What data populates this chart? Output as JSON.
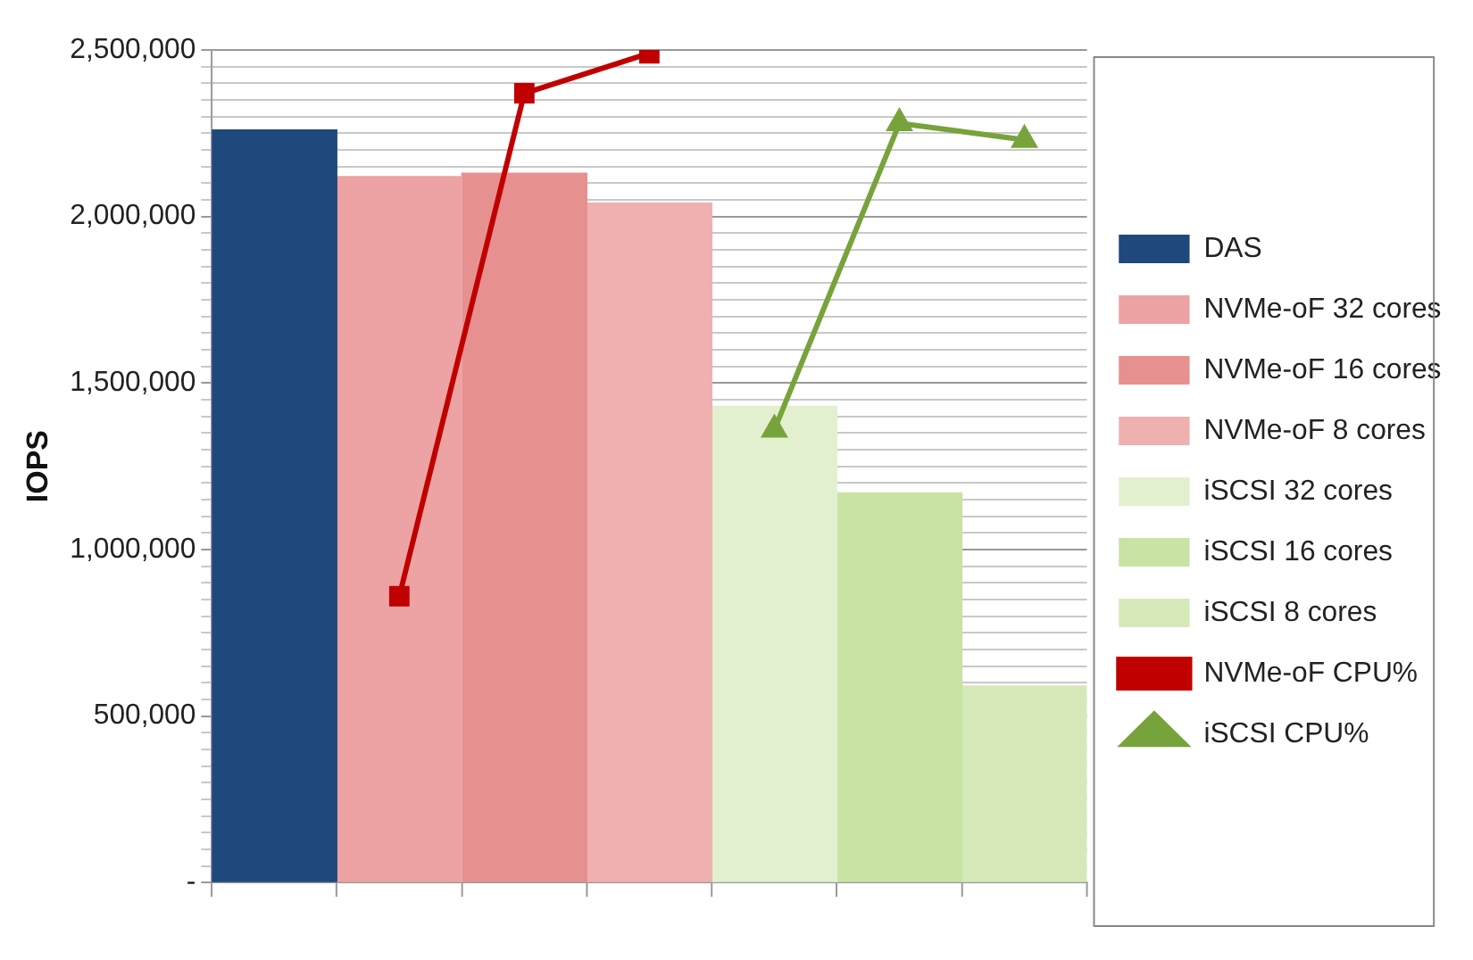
{
  "chart_data": {
    "type": "bar",
    "ylabel": "IOPS",
    "categories": [
      null,
      null,
      null,
      null,
      null,
      null,
      null
    ],
    "series": [
      {
        "name": "DAS",
        "color": "#1f497d",
        "values": [
          2260000,
          null,
          null,
          null,
          null,
          null,
          null
        ]
      },
      {
        "name": "NVMe-oF 32 cores",
        "color": "#eda3a3",
        "values": [
          null,
          2120000,
          null,
          null,
          null,
          null,
          null
        ]
      },
      {
        "name": "NVMe-oF 16 cores",
        "color": "#e79090",
        "values": [
          null,
          null,
          2130000,
          null,
          null,
          null,
          null
        ]
      },
      {
        "name": "NVMe-oF 8 cores",
        "color": "#efb0b0",
        "values": [
          null,
          null,
          null,
          2040000,
          null,
          null,
          null
        ]
      },
      {
        "name": "iSCSI 32 cores",
        "color": "#e2f0cf",
        "values": [
          null,
          null,
          null,
          null,
          1430000,
          null,
          null
        ]
      },
      {
        "name": "iSCSI 16 cores",
        "color": "#c8e3a4",
        "values": [
          null,
          null,
          null,
          null,
          null,
          1170000,
          null
        ]
      },
      {
        "name": "iSCSI 8 cores",
        "color": "#d6eab9",
        "values": [
          null,
          null,
          null,
          null,
          null,
          null,
          590000
        ]
      },
      {
        "name": "NVMe-oF CPU%",
        "type": "line",
        "marker": "square",
        "color": "#c00000",
        "values": [
          null,
          860000,
          2370000,
          2490000,
          null,
          null,
          null
        ]
      },
      {
        "name": "iSCSI CPU%",
        "type": "line",
        "marker": "triangle",
        "color": "#77a33b",
        "values": [
          null,
          null,
          null,
          null,
          1360000,
          2280000,
          2230000
        ]
      }
    ],
    "ylim": [
      0,
      2500000
    ],
    "yticks": [
      {
        "value": 0,
        "label": "-"
      },
      {
        "value": 50000,
        "label": null
      },
      {
        "value": 100000,
        "label": null
      },
      {
        "value": 150000,
        "label": null
      },
      {
        "value": 200000,
        "label": null
      },
      {
        "value": 250000,
        "label": null
      },
      {
        "value": 300000,
        "label": null
      },
      {
        "value": 350000,
        "label": null
      },
      {
        "value": 400000,
        "label": null
      },
      {
        "value": 450000,
        "label": null
      },
      {
        "value": 500000,
        "label": "500,000"
      },
      {
        "value": 550000,
        "label": null
      },
      {
        "value": 600000,
        "label": null
      },
      {
        "value": 650000,
        "label": null
      },
      {
        "value": 700000,
        "label": null
      },
      {
        "value": 750000,
        "label": null
      },
      {
        "value": 800000,
        "label": null
      },
      {
        "value": 850000,
        "label": null
      },
      {
        "value": 900000,
        "label": null
      },
      {
        "value": 950000,
        "label": null
      },
      {
        "value": 1000000,
        "label": "1,000,000"
      },
      {
        "value": 1050000,
        "label": null
      },
      {
        "value": 1100000,
        "label": null
      },
      {
        "value": 1150000,
        "label": null
      },
      {
        "value": 1200000,
        "label": null
      },
      {
        "value": 1250000,
        "label": null
      },
      {
        "value": 1300000,
        "label": null
      },
      {
        "value": 1350000,
        "label": null
      },
      {
        "value": 1400000,
        "label": null
      },
      {
        "value": 1450000,
        "label": null
      },
      {
        "value": 1500000,
        "label": "1,500,000"
      },
      {
        "value": 1550000,
        "label": null
      },
      {
        "value": 1600000,
        "label": null
      },
      {
        "value": 1650000,
        "label": null
      },
      {
        "value": 1700000,
        "label": null
      },
      {
        "value": 1750000,
        "label": null
      },
      {
        "value": 1800000,
        "label": null
      },
      {
        "value": 1850000,
        "label": null
      },
      {
        "value": 1900000,
        "label": null
      },
      {
        "value": 1950000,
        "label": null
      },
      {
        "value": 2000000,
        "label": "2,000,000"
      },
      {
        "value": 2050000,
        "label": null
      },
      {
        "value": 2100000,
        "label": null
      },
      {
        "value": 2150000,
        "label": null
      },
      {
        "value": 2200000,
        "label": null
      },
      {
        "value": 2250000,
        "label": null
      },
      {
        "value": 2300000,
        "label": null
      },
      {
        "value": 2350000,
        "label": null
      },
      {
        "value": 2400000,
        "label": null
      },
      {
        "value": 2450000,
        "label": null
      },
      {
        "value": 2500000,
        "label": "2,500,000"
      }
    ],
    "grid": "y",
    "legend": "right"
  }
}
